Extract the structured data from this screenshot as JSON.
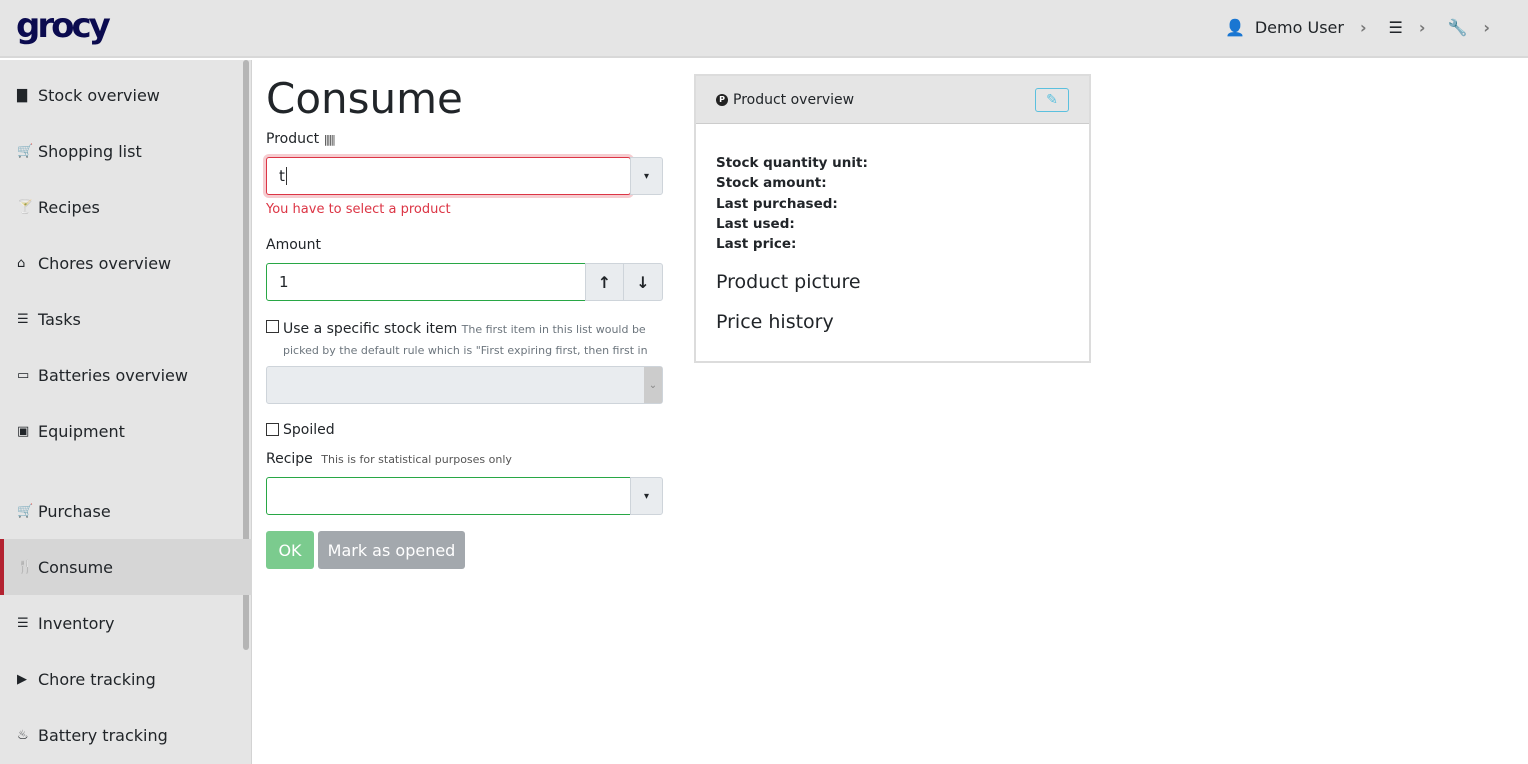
{
  "header": {
    "logo": "grocy",
    "user": "Demo User"
  },
  "sidebar": {
    "items": [
      {
        "label": "Stock overview",
        "icon": "box-icon",
        "glyph": "▇"
      },
      {
        "label": "Shopping list",
        "icon": "cart-icon",
        "glyph": "🛒"
      },
      {
        "label": "Recipes",
        "icon": "cocktail-icon",
        "glyph": "🍸"
      },
      {
        "label": "Chores overview",
        "icon": "home-icon",
        "glyph": "⌂"
      },
      {
        "label": "Tasks",
        "icon": "tasks-icon",
        "glyph": "☰"
      },
      {
        "label": "Batteries overview",
        "icon": "battery-icon",
        "glyph": "▭"
      },
      {
        "label": "Equipment",
        "icon": "toolbox-icon",
        "glyph": "▣"
      },
      {
        "label": "Purchase",
        "icon": "cart-icon",
        "glyph": "🛒"
      },
      {
        "label": "Consume",
        "icon": "utensils-icon",
        "glyph": "🍴"
      },
      {
        "label": "Inventory",
        "icon": "list-icon",
        "glyph": "☰"
      },
      {
        "label": "Chore tracking",
        "icon": "play-icon",
        "glyph": "▶"
      },
      {
        "label": "Battery tracking",
        "icon": "fire-icon",
        "glyph": "♨"
      }
    ],
    "active": "Consume"
  },
  "page": {
    "title": "Consume",
    "product_label": "Product",
    "product_value": "t",
    "product_error": "You have to select a product",
    "amount_label": "Amount",
    "amount_value": "1",
    "specific_label": "Use a specific stock item",
    "specific_help": "The first item in this list would be picked by the default rule which is \"First expiring first, then first in first out\"",
    "spoiled_label": "Spoiled",
    "recipe_label": "Recipe",
    "recipe_help": "This is for statistical purposes only",
    "recipe_value": "",
    "ok_label": "OK",
    "opened_label": "Mark as opened"
  },
  "card": {
    "title": "Product overview",
    "fields": [
      "Stock quantity unit:",
      "Stock amount:",
      "Last purchased:",
      "Last used:",
      "Last price:"
    ],
    "picture": "Product picture",
    "price_history": "Price history"
  },
  "colors": {
    "error": "#dc3545",
    "success": "#28a745",
    "ok_button": "#7bcb8e",
    "opened_button": "#a3a8ad",
    "active_border": "#b32230",
    "logo": "#0b0b4f"
  }
}
